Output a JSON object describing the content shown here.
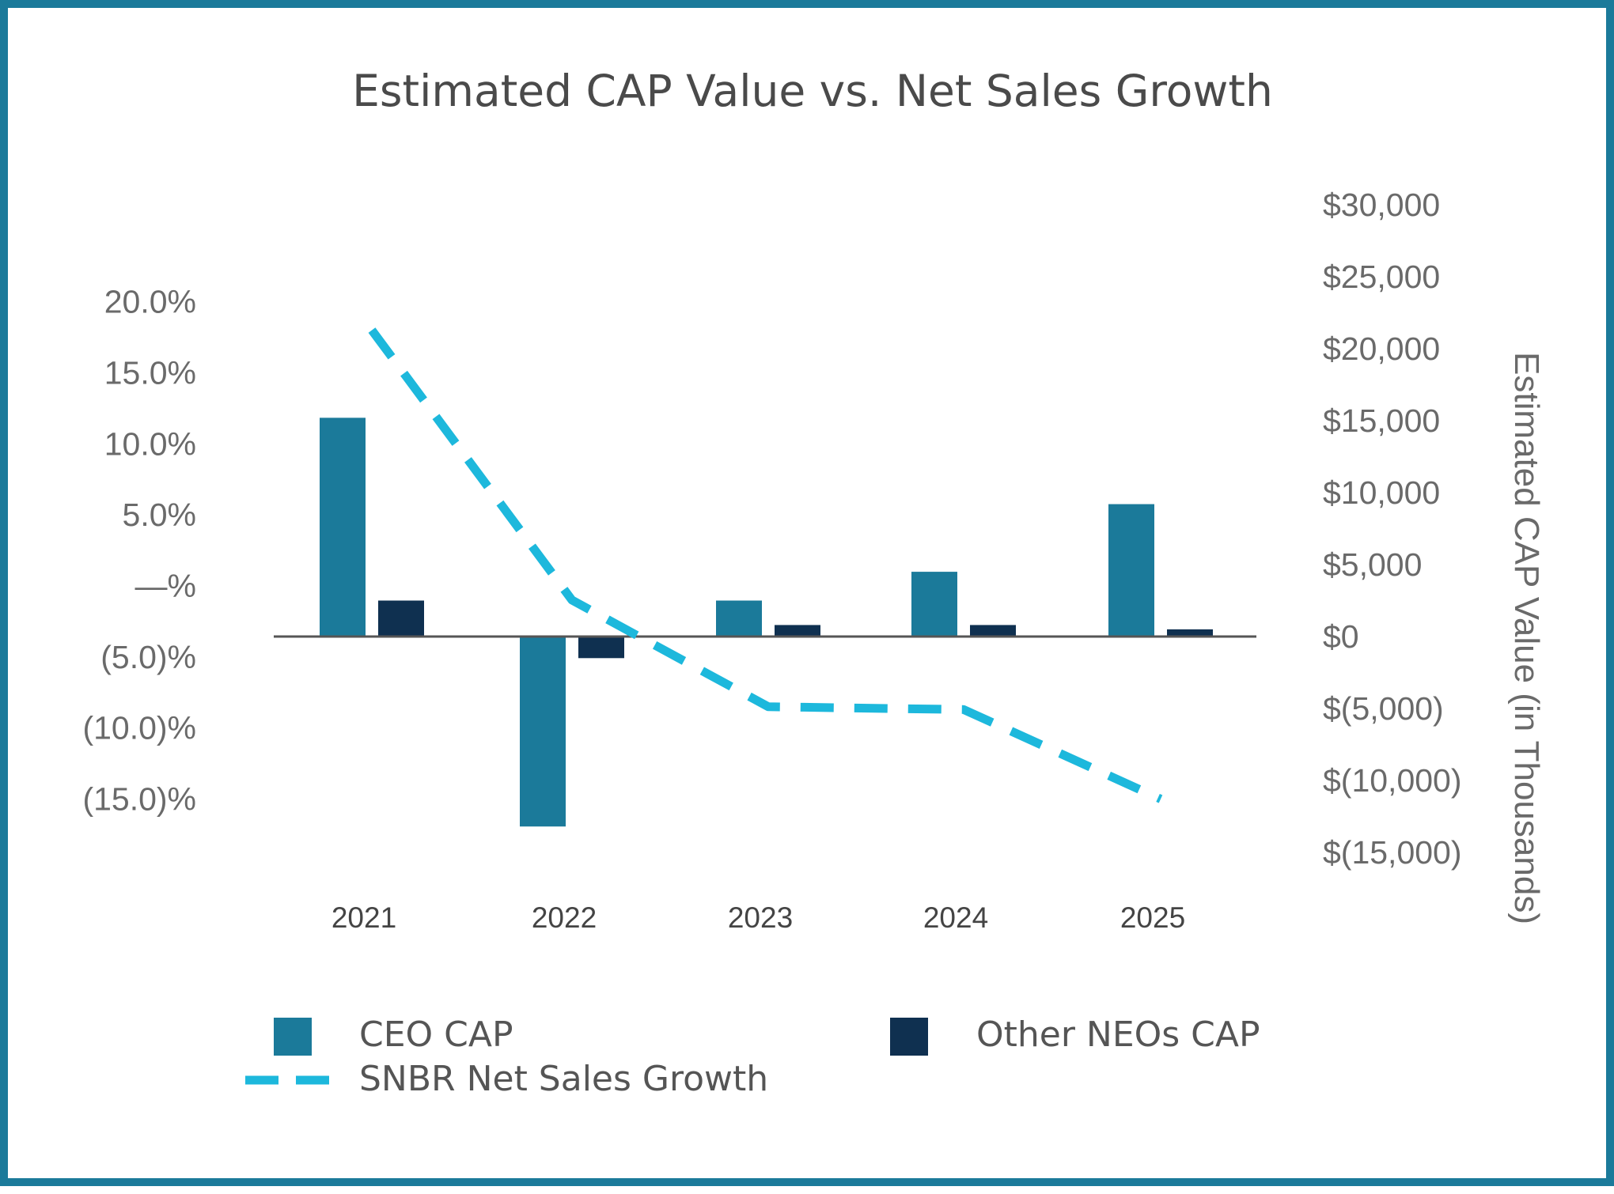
{
  "chart_data": {
    "type": "bar",
    "title": "Estimated CAP Value vs. Net Sales Growth",
    "categories": [
      "2021",
      "2022",
      "2023",
      "2024",
      "2025"
    ],
    "xlabel": "",
    "ylabel_left": "",
    "ylabel_right": "Estimated CAP Value (in Thousands)",
    "left_axis": {
      "ylim": [
        -15,
        20
      ],
      "ticks": [
        20,
        15,
        10,
        5,
        0,
        -5,
        -10,
        -15
      ],
      "tick_labels": [
        "20.0%",
        "15.0%",
        "10.0%",
        "5.0%",
        "—%",
        "(5.0)%",
        "(10.0)%",
        "(15.0)%"
      ]
    },
    "right_axis": {
      "ylim": [
        -15000,
        30000
      ],
      "ticks": [
        30000,
        25000,
        20000,
        15000,
        10000,
        5000,
        0,
        -5000,
        -10000,
        -15000
      ],
      "tick_labels": [
        "$30,000",
        "$25,000",
        "$20,000",
        "$15,000",
        "$10,000",
        "$5,000",
        "$0",
        "$(5,000)",
        "$(10,000)",
        "$(15,000)"
      ]
    },
    "series": [
      {
        "name": "CEO CAP",
        "kind": "bar",
        "axis": "right",
        "color": "#1B7A9A",
        "values": [
          15200,
          -13200,
          2500,
          4500,
          9200
        ]
      },
      {
        "name": "Other NEOs CAP",
        "kind": "bar",
        "axis": "right",
        "color": "#0F3050",
        "values": [
          2500,
          -1500,
          800,
          800,
          500
        ]
      },
      {
        "name": "SNBR Net Sales Growth",
        "kind": "line",
        "style": "dashed",
        "axis": "left",
        "color": "#1DB8DC",
        "values": [
          18.0,
          -1.0,
          -8.5,
          -8.7,
          -15.0
        ]
      }
    ],
    "legend": {
      "placement": "bottom",
      "items": [
        "CEO CAP",
        "Other NEOs CAP",
        "SNBR Net Sales Growth"
      ]
    }
  }
}
